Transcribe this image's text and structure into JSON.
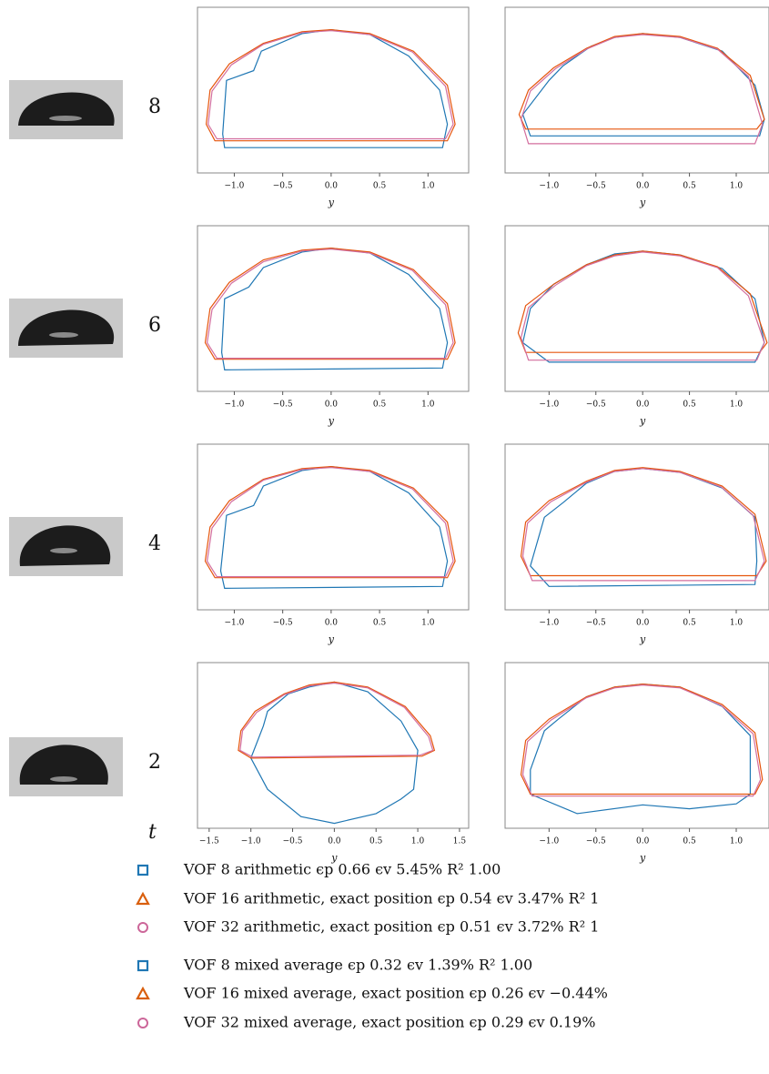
{
  "chart_data": [
    {
      "type": "line",
      "xlabel": "y",
      "xlim": [
        -1.38,
        1.42
      ],
      "ylim": [
        0,
        1.7
      ],
      "xticks": [
        {
          "value": -1,
          "label": "−1.0"
        },
        {
          "value": -0.5,
          "label": "−0.5"
        },
        {
          "value": 0,
          "label": "0.0"
        },
        {
          "value": 0.5,
          "label": "0.5"
        },
        {
          "value": 1,
          "label": "1.0"
        }
      ],
      "series": [
        {
          "color": "#1f77b4",
          "x": [
            -1.1,
            -1.12,
            -1.08,
            -0.8,
            -0.72,
            -0.3,
            0,
            0.4,
            0.8,
            1.12,
            1.2,
            1.15
          ],
          "y": [
            0.26,
            0.4,
            0.95,
            1.05,
            1.25,
            1.43,
            1.47,
            1.42,
            1.2,
            0.85,
            0.5,
            0.26
          ]
        },
        {
          "color": "#e6550d",
          "x": [
            -1.2,
            -1.29,
            -1.25,
            -1.05,
            -0.7,
            -0.3,
            0,
            0.4,
            0.85,
            1.2,
            1.28,
            1.2
          ],
          "y": [
            0.33,
            0.5,
            0.85,
            1.12,
            1.33,
            1.45,
            1.47,
            1.43,
            1.25,
            0.9,
            0.5,
            0.33
          ]
        },
        {
          "color": "#d36e9e",
          "x": [
            -1.18,
            -1.27,
            -1.23,
            -1.03,
            -0.7,
            -0.3,
            0,
            0.4,
            0.84,
            1.18,
            1.26,
            1.18
          ],
          "y": [
            0.35,
            0.5,
            0.84,
            1.11,
            1.32,
            1.44,
            1.46,
            1.42,
            1.24,
            0.89,
            0.5,
            0.35
          ]
        }
      ]
    },
    {
      "type": "line",
      "xlabel": "y",
      "xlim": [
        -1.47,
        1.35
      ],
      "ylim": [
        0,
        1.7
      ],
      "xticks": [
        {
          "value": -1,
          "label": "−1.0"
        },
        {
          "value": -0.5,
          "label": "−0.5"
        },
        {
          "value": 0,
          "label": "0.0"
        },
        {
          "value": 0.5,
          "label": "0.5"
        },
        {
          "value": 1,
          "label": "1.0"
        }
      ],
      "series": [
        {
          "color": "#1f77b4",
          "x": [
            -1.2,
            -1.28,
            -1.0,
            -0.85,
            -0.55,
            -0.3,
            0,
            0.4,
            0.85,
            1.2,
            1.3,
            1.25
          ],
          "y": [
            0.38,
            0.6,
            0.95,
            1.1,
            1.3,
            1.39,
            1.43,
            1.39,
            1.25,
            0.9,
            0.55,
            0.38
          ]
        },
        {
          "color": "#e6550d",
          "x": [
            -1.25,
            -1.32,
            -1.22,
            -0.95,
            -0.6,
            -0.3,
            0,
            0.4,
            0.8,
            1.15,
            1.3,
            1.22
          ],
          "y": [
            0.45,
            0.6,
            0.85,
            1.08,
            1.28,
            1.4,
            1.43,
            1.4,
            1.28,
            1.0,
            0.55,
            0.45
          ]
        },
        {
          "color": "#d36e9e",
          "x": [
            -1.22,
            -1.3,
            -1.2,
            -0.93,
            -0.6,
            -0.3,
            0,
            0.4,
            0.8,
            1.13,
            1.28,
            1.2
          ],
          "y": [
            0.3,
            0.55,
            0.84,
            1.07,
            1.27,
            1.39,
            1.42,
            1.39,
            1.27,
            0.99,
            0.5,
            0.3
          ]
        }
      ]
    },
    {
      "type": "line",
      "xlabel": "y",
      "xlim": [
        -1.38,
        1.42
      ],
      "ylim": [
        0,
        1.7
      ],
      "xticks": [
        {
          "value": -1,
          "label": "−1.0"
        },
        {
          "value": -0.5,
          "label": "−0.5"
        },
        {
          "value": 0,
          "label": "0.0"
        },
        {
          "value": 0.5,
          "label": "0.5"
        },
        {
          "value": 1,
          "label": "1.0"
        }
      ],
      "series": [
        {
          "color": "#1f77b4",
          "x": [
            -1.1,
            -1.13,
            -1.1,
            -0.85,
            -0.7,
            -0.3,
            0,
            0.4,
            0.8,
            1.12,
            1.2,
            1.15
          ],
          "y": [
            0.22,
            0.4,
            0.95,
            1.07,
            1.27,
            1.43,
            1.47,
            1.42,
            1.2,
            0.85,
            0.5,
            0.24
          ]
        },
        {
          "color": "#e6550d",
          "x": [
            -1.2,
            -1.3,
            -1.25,
            -1.05,
            -0.7,
            -0.3,
            0,
            0.4,
            0.85,
            1.2,
            1.28,
            1.2
          ],
          "y": [
            0.33,
            0.5,
            0.85,
            1.12,
            1.35,
            1.45,
            1.47,
            1.43,
            1.25,
            0.9,
            0.5,
            0.33
          ]
        },
        {
          "color": "#d36e9e",
          "x": [
            -1.18,
            -1.28,
            -1.23,
            -1.03,
            -0.7,
            -0.3,
            0,
            0.4,
            0.84,
            1.18,
            1.26,
            1.18
          ],
          "y": [
            0.34,
            0.5,
            0.84,
            1.11,
            1.33,
            1.44,
            1.46,
            1.42,
            1.24,
            0.89,
            0.5,
            0.34
          ]
        }
      ]
    },
    {
      "type": "line",
      "xlabel": "y",
      "xlim": [
        -1.47,
        1.35
      ],
      "ylim": [
        0,
        1.7
      ],
      "xticks": [
        {
          "value": -1,
          "label": "−1.0"
        },
        {
          "value": -0.5,
          "label": "−0.5"
        },
        {
          "value": 0,
          "label": "0.0"
        },
        {
          "value": 0.5,
          "label": "0.5"
        },
        {
          "value": 1,
          "label": "1.0"
        }
      ],
      "series": [
        {
          "color": "#1f77b4",
          "x": [
            -1.0,
            -1.28,
            -1.2,
            -0.95,
            -0.6,
            -0.3,
            0,
            0.4,
            0.85,
            1.2,
            1.3,
            1.2
          ],
          "y": [
            0.3,
            0.5,
            0.85,
            1.1,
            1.3,
            1.41,
            1.44,
            1.4,
            1.26,
            0.95,
            0.5,
            0.3
          ]
        },
        {
          "color": "#e6550d",
          "x": [
            -1.25,
            -1.33,
            -1.25,
            -0.95,
            -0.6,
            -0.3,
            0,
            0.4,
            0.8,
            1.15,
            1.33,
            1.25
          ],
          "y": [
            0.4,
            0.6,
            0.88,
            1.1,
            1.3,
            1.4,
            1.44,
            1.4,
            1.28,
            1.0,
            0.5,
            0.4
          ]
        },
        {
          "color": "#d36e9e",
          "x": [
            -1.22,
            -1.3,
            -1.22,
            -0.93,
            -0.6,
            -0.3,
            0,
            0.4,
            0.8,
            1.13,
            1.3,
            1.22
          ],
          "y": [
            0.32,
            0.55,
            0.86,
            1.09,
            1.29,
            1.39,
            1.43,
            1.39,
            1.27,
            0.98,
            0.5,
            0.32
          ]
        }
      ]
    },
    {
      "type": "line",
      "xlabel": "y",
      "xlim": [
        -1.38,
        1.42
      ],
      "ylim": [
        0,
        1.7
      ],
      "xticks": [
        {
          "value": -1,
          "label": "−1.0"
        },
        {
          "value": -0.5,
          "label": "−0.5"
        },
        {
          "value": 0,
          "label": "0.0"
        },
        {
          "value": 0.5,
          "label": "0.5"
        },
        {
          "value": 1,
          "label": "1.0"
        }
      ],
      "series": [
        {
          "color": "#1f77b4",
          "x": [
            -1.1,
            -1.14,
            -1.08,
            -0.8,
            -0.7,
            -0.3,
            0,
            0.4,
            0.8,
            1.12,
            1.2,
            1.15
          ],
          "y": [
            0.22,
            0.4,
            0.97,
            1.07,
            1.27,
            1.43,
            1.47,
            1.42,
            1.2,
            0.85,
            0.5,
            0.24
          ]
        },
        {
          "color": "#e6550d",
          "x": [
            -1.2,
            -1.3,
            -1.25,
            -1.05,
            -0.7,
            -0.3,
            0,
            0.4,
            0.85,
            1.2,
            1.28,
            1.2
          ],
          "y": [
            0.33,
            0.5,
            0.85,
            1.12,
            1.34,
            1.45,
            1.47,
            1.43,
            1.25,
            0.9,
            0.5,
            0.33
          ]
        },
        {
          "color": "#d36e9e",
          "x": [
            -1.18,
            -1.28,
            -1.23,
            -1.03,
            -0.7,
            -0.3,
            0,
            0.4,
            0.84,
            1.18,
            1.26,
            1.18
          ],
          "y": [
            0.34,
            0.5,
            0.84,
            1.11,
            1.33,
            1.44,
            1.46,
            1.42,
            1.24,
            0.89,
            0.5,
            0.34
          ]
        }
      ]
    },
    {
      "type": "line",
      "xlabel": "y",
      "xlim": [
        -1.47,
        1.35
      ],
      "ylim": [
        0,
        1.7
      ],
      "xticks": [
        {
          "value": -1,
          "label": "−1.0"
        },
        {
          "value": -0.5,
          "label": "−0.5"
        },
        {
          "value": 0,
          "label": "0.0"
        },
        {
          "value": 0.5,
          "label": "0.5"
        },
        {
          "value": 1,
          "label": "1.0"
        }
      ],
      "series": [
        {
          "color": "#1f77b4",
          "x": [
            -1.0,
            -1.2,
            -1.05,
            -0.85,
            -0.6,
            -0.3,
            0,
            0.4,
            0.85,
            1.2,
            1.22,
            1.2
          ],
          "y": [
            0.24,
            0.45,
            0.95,
            1.1,
            1.3,
            1.42,
            1.45,
            1.41,
            1.25,
            0.95,
            0.5,
            0.26
          ]
        },
        {
          "color": "#e6550d",
          "x": [
            -1.2,
            -1.3,
            -1.25,
            -1.0,
            -0.6,
            -0.3,
            0,
            0.4,
            0.85,
            1.2,
            1.32,
            1.22
          ],
          "y": [
            0.35,
            0.55,
            0.9,
            1.12,
            1.32,
            1.43,
            1.46,
            1.42,
            1.27,
            0.98,
            0.5,
            0.35
          ]
        },
        {
          "color": "#d36e9e",
          "x": [
            -1.18,
            -1.28,
            -1.23,
            -0.98,
            -0.6,
            -0.3,
            0,
            0.4,
            0.84,
            1.18,
            1.3,
            1.2
          ],
          "y": [
            0.3,
            0.55,
            0.89,
            1.11,
            1.31,
            1.42,
            1.45,
            1.41,
            1.26,
            0.97,
            0.5,
            0.3
          ]
        }
      ]
    },
    {
      "type": "line",
      "xlabel": "y",
      "xlim": [
        -1.64,
        1.61
      ],
      "ylim": [
        0,
        1.7
      ],
      "xticks": [
        {
          "value": -1.5,
          "label": "−1.5"
        },
        {
          "value": -1,
          "label": "−1.0"
        },
        {
          "value": -0.5,
          "label": "−0.5"
        },
        {
          "value": 0,
          "label": "0.0"
        },
        {
          "value": 0.5,
          "label": "0.5"
        },
        {
          "value": 1,
          "label": "1.0"
        },
        {
          "value": 1.5,
          "label": "1.5"
        }
      ],
      "series": [
        {
          "color": "#1f77b4",
          "x": [
            -1.0,
            -0.85,
            -0.8,
            -0.55,
            -0.3,
            0,
            0.4,
            0.8,
            1.0,
            0.95,
            0.8,
            0.5,
            0.0,
            -0.4,
            -0.8
          ],
          "y": [
            0.72,
            1.05,
            1.2,
            1.38,
            1.45,
            1.5,
            1.4,
            1.1,
            0.8,
            0.4,
            0.3,
            0.15,
            0.05,
            0.12,
            0.4
          ]
        },
        {
          "color": "#e6550d",
          "x": [
            -1.0,
            -1.15,
            -1.12,
            -0.95,
            -0.6,
            -0.3,
            0,
            0.4,
            0.85,
            1.15,
            1.2,
            1.05
          ],
          "y": [
            0.72,
            0.8,
            1.0,
            1.2,
            1.38,
            1.47,
            1.5,
            1.45,
            1.25,
            0.95,
            0.8,
            0.74
          ]
        },
        {
          "color": "#d36e9e",
          "x": [
            -0.98,
            -1.13,
            -1.1,
            -0.93,
            -0.6,
            -0.3,
            0,
            0.4,
            0.84,
            1.13,
            1.18,
            1.03
          ],
          "y": [
            0.73,
            0.8,
            1.0,
            1.19,
            1.37,
            1.46,
            1.49,
            1.44,
            1.24,
            0.94,
            0.8,
            0.75
          ]
        }
      ]
    },
    {
      "type": "line",
      "xlabel": "y",
      "xlim": [
        -1.47,
        1.35
      ],
      "ylim": [
        0,
        1.7
      ],
      "xticks": [
        {
          "value": -1,
          "label": "−1.0"
        },
        {
          "value": -0.5,
          "label": "−0.5"
        },
        {
          "value": 0,
          "label": "0.0"
        },
        {
          "value": 0.5,
          "label": "0.5"
        },
        {
          "value": 1,
          "label": "1.0"
        }
      ],
      "series": [
        {
          "color": "#1f77b4",
          "x": [
            -1.2,
            -1.2,
            -1.05,
            -0.9,
            -0.6,
            -0.3,
            0,
            0.4,
            0.85,
            1.15,
            1.15,
            1.0,
            0.5,
            0,
            -0.7
          ],
          "y": [
            0.35,
            0.6,
            1.0,
            1.12,
            1.35,
            1.45,
            1.48,
            1.45,
            1.25,
            0.95,
            0.35,
            0.25,
            0.2,
            0.24,
            0.15
          ]
        },
        {
          "color": "#e6550d",
          "x": [
            -1.2,
            -1.3,
            -1.25,
            -1.0,
            -0.6,
            -0.3,
            0,
            0.4,
            0.85,
            1.2,
            1.28,
            1.2
          ],
          "y": [
            0.35,
            0.55,
            0.9,
            1.12,
            1.35,
            1.45,
            1.48,
            1.45,
            1.27,
            0.98,
            0.5,
            0.35
          ]
        },
        {
          "color": "#d36e9e",
          "x": [
            -1.18,
            -1.28,
            -1.23,
            -0.98,
            -0.6,
            -0.3,
            0,
            0.4,
            0.84,
            1.18,
            1.26,
            1.18
          ],
          "y": [
            0.33,
            0.55,
            0.89,
            1.11,
            1.34,
            1.44,
            1.47,
            1.44,
            1.26,
            0.97,
            0.5,
            0.33
          ]
        }
      ]
    }
  ],
  "row_labels": [
    "8",
    "6",
    "4",
    "2"
  ],
  "time_label": "t",
  "legend": [
    {
      "label": "VOF 8 arithmetic ϵp 0.66 ϵv 5.45% R² 1.00",
      "color": "#1f77b4",
      "marker": "square"
    },
    {
      "label": "VOF 16 arithmetic, exact position ϵp 0.54 ϵv 3.47% R² 1",
      "color": "#d95f0e",
      "marker": "triangle"
    },
    {
      "label": "VOF 32 arithmetic, exact position ϵp 0.51 ϵv 3.72% R² 1",
      "color": "#cc6699",
      "marker": "circle"
    },
    {
      "label": "VOF 8 mixed average ϵp 0.32 ϵv 1.39% R² 1.00",
      "color": "#1f77b4",
      "marker": "square"
    },
    {
      "label": "VOF 16 mixed average, exact position ϵp 0.26 ϵv −0.44%",
      "color": "#d95f0e",
      "marker": "triangle"
    },
    {
      "label": "VOF 32 mixed average, exact position ϵp 0.29 ϵv 0.19%",
      "color": "#cc6699",
      "marker": "circle"
    }
  ]
}
